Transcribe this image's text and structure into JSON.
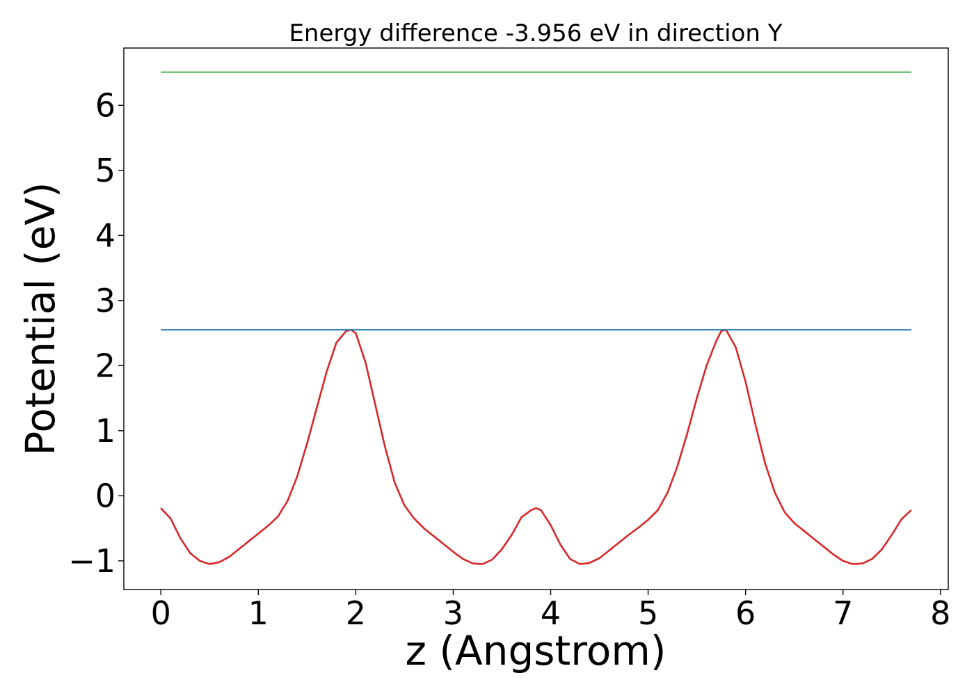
{
  "chart_data": {
    "type": "line",
    "title": "Energy difference -3.956 eV in direction Y",
    "xlabel": "z (Angstrom)",
    "ylabel": "Potential (eV)",
    "xlim": [
      -0.38,
      8.08
    ],
    "ylim": [
      -1.44,
      6.88
    ],
    "grid": false,
    "x_ticks": [
      0,
      1,
      2,
      3,
      4,
      5,
      6,
      7,
      8
    ],
    "y_ticks": [
      -1,
      0,
      1,
      2,
      3,
      4,
      5,
      6
    ],
    "x_tick_labels": [
      "0",
      "1",
      "2",
      "3",
      "4",
      "5",
      "6",
      "7",
      "8"
    ],
    "y_tick_labels": [
      "−1",
      "0",
      "1",
      "2",
      "3",
      "4",
      "5",
      "6"
    ],
    "series": [
      {
        "color": "#d62728",
        "x": [
          0.0,
          0.1,
          0.2,
          0.3,
          0.4,
          0.5,
          0.6,
          0.7,
          0.8,
          0.9,
          1.0,
          1.1,
          1.2,
          1.3,
          1.4,
          1.5,
          1.6,
          1.7,
          1.8,
          1.9,
          1.95,
          2.0,
          2.1,
          2.2,
          2.3,
          2.4,
          2.5,
          2.6,
          2.7,
          2.8,
          2.9,
          3.0,
          3.1,
          3.2,
          3.3,
          3.4,
          3.5,
          3.6,
          3.7,
          3.8,
          3.85,
          3.9,
          4.0,
          4.1,
          4.2,
          4.3,
          4.4,
          4.5,
          4.6,
          4.7,
          4.8,
          4.9,
          5.0,
          5.1,
          5.2,
          5.3,
          5.4,
          5.5,
          5.6,
          5.7,
          5.75,
          5.8,
          5.9,
          6.0,
          6.1,
          6.2,
          6.3,
          6.4,
          6.5,
          6.6,
          6.7,
          6.8,
          6.9,
          7.0,
          7.1,
          7.2,
          7.3,
          7.4,
          7.5,
          7.6,
          7.7
        ],
        "y": [
          -0.19,
          -0.35,
          -0.65,
          -0.88,
          -1.0,
          -1.05,
          -1.02,
          -0.94,
          -0.82,
          -0.7,
          -0.58,
          -0.46,
          -0.32,
          -0.08,
          0.3,
          0.8,
          1.35,
          1.9,
          2.35,
          2.53,
          2.55,
          2.5,
          2.05,
          1.4,
          0.75,
          0.2,
          -0.15,
          -0.35,
          -0.5,
          -0.62,
          -0.74,
          -0.86,
          -0.97,
          -1.04,
          -1.05,
          -0.98,
          -0.82,
          -0.6,
          -0.33,
          -0.22,
          -0.19,
          -0.22,
          -0.45,
          -0.75,
          -0.97,
          -1.05,
          -1.03,
          -0.96,
          -0.84,
          -0.72,
          -0.6,
          -0.49,
          -0.37,
          -0.22,
          0.05,
          0.45,
          0.95,
          1.5,
          2.0,
          2.38,
          2.53,
          2.55,
          2.28,
          1.75,
          1.1,
          0.5,
          0.05,
          -0.25,
          -0.42,
          -0.54,
          -0.66,
          -0.78,
          -0.9,
          -1.0,
          -1.05,
          -1.04,
          -0.97,
          -0.82,
          -0.6,
          -0.36,
          -0.22
        ]
      },
      {
        "color": "#2c7fb8",
        "x": [
          0.0,
          7.7
        ],
        "y": [
          2.55,
          2.55
        ]
      },
      {
        "color": "#2ca02c",
        "x": [
          0.0,
          7.7
        ],
        "y": [
          6.51,
          6.51
        ]
      }
    ]
  }
}
